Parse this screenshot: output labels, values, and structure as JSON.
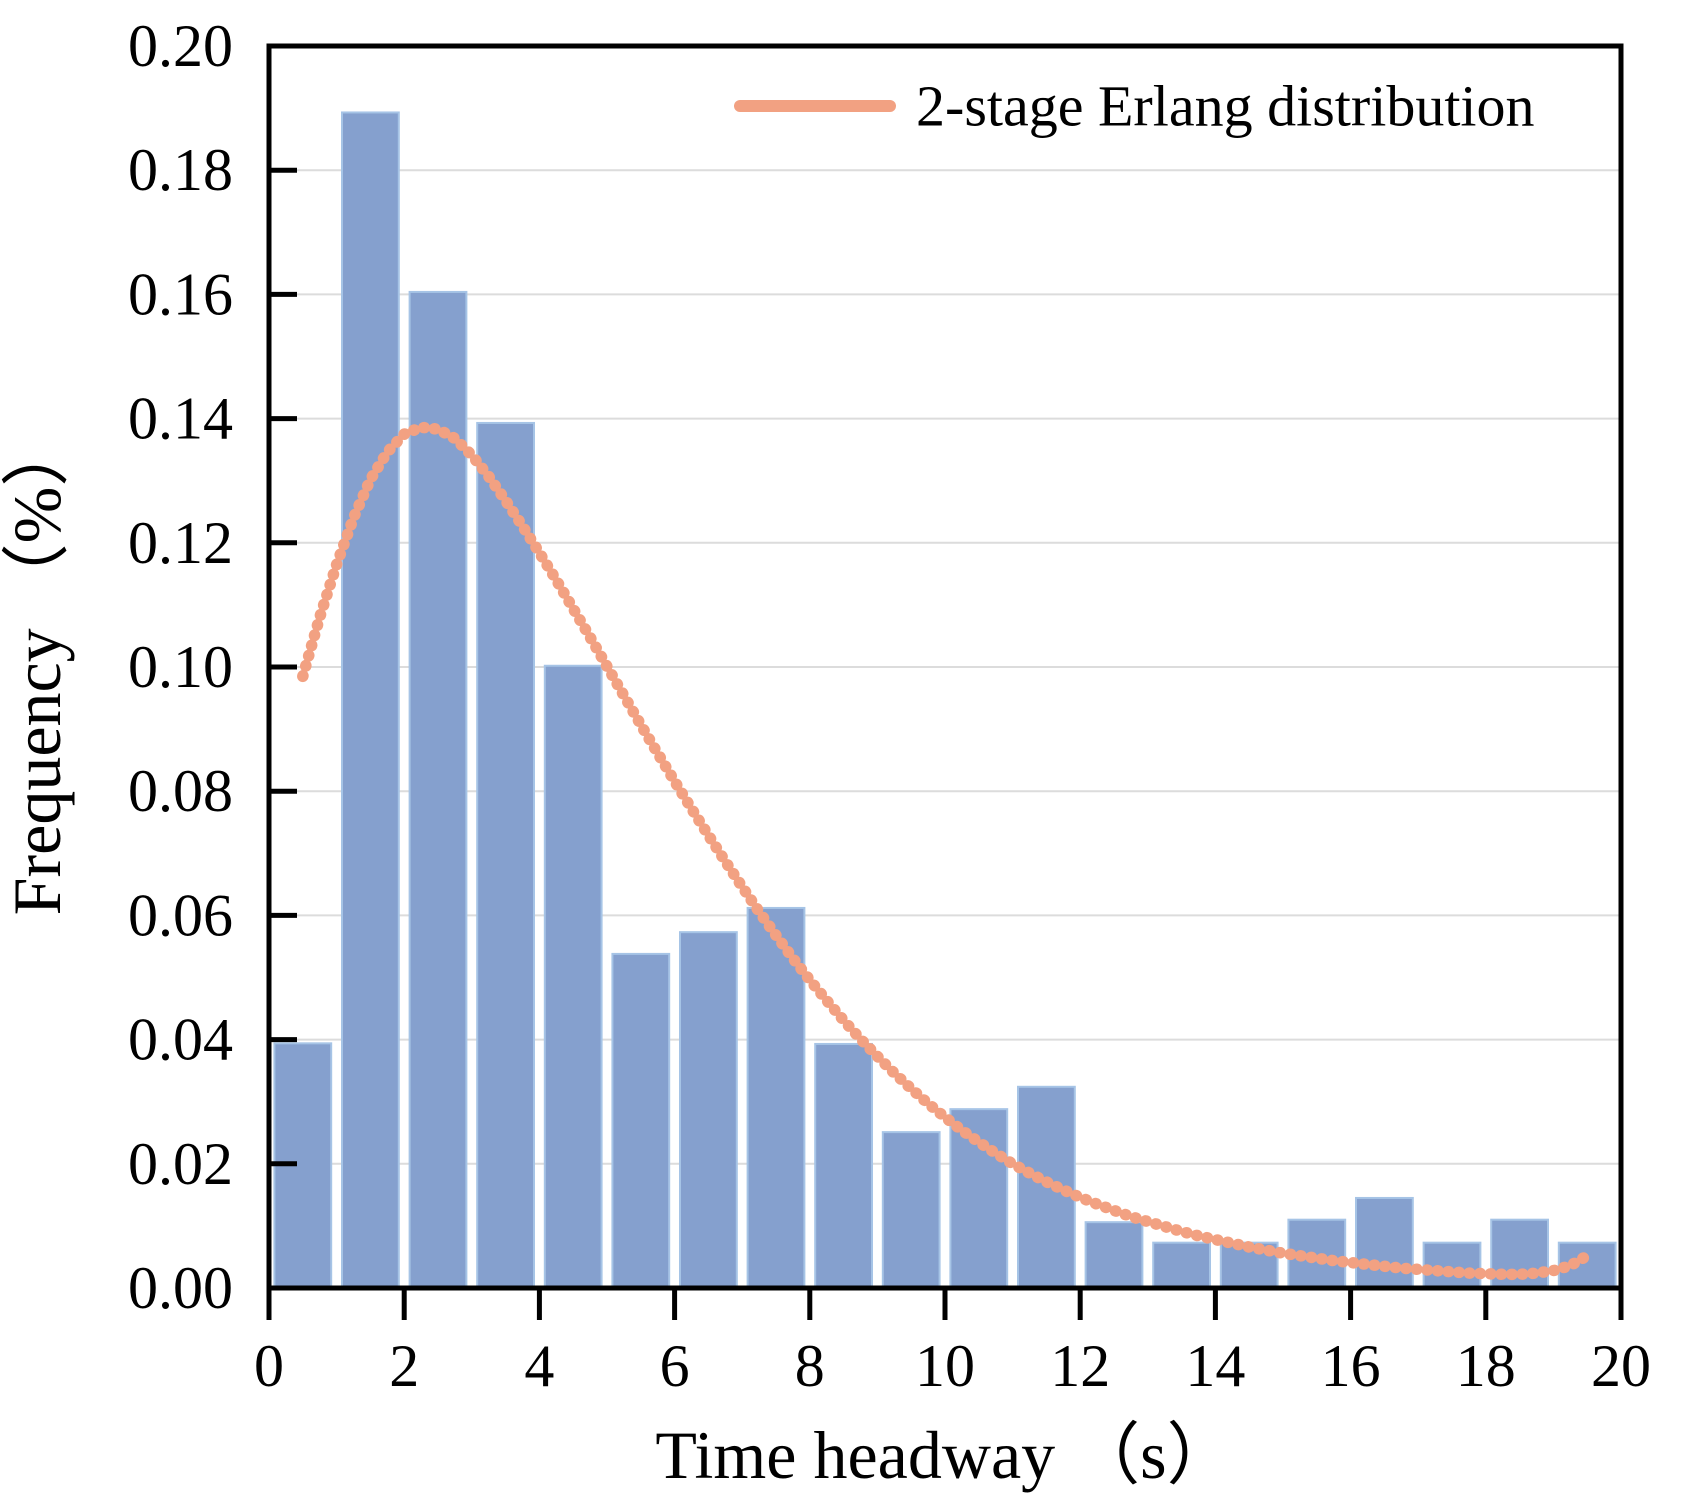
{
  "chart_data": {
    "type": "bar",
    "subtype": "histogram-with-fitted-line",
    "title": "",
    "xlabel": "Time headway （s）",
    "ylabel": "Frequency （%）",
    "xlim": [
      0,
      20
    ],
    "ylim": [
      0.0,
      0.2
    ],
    "x_ticks": [
      0,
      2,
      4,
      6,
      8,
      10,
      12,
      14,
      16,
      18,
      20
    ],
    "y_ticks": [
      0.0,
      0.02,
      0.04,
      0.06,
      0.08,
      0.1,
      0.12,
      0.14,
      0.16,
      0.18,
      0.2
    ],
    "grid": true,
    "legend": {
      "label": "2-stage Erlang distribution",
      "position": "top-right"
    },
    "bars": {
      "name": "time-headway-frequency-histogram",
      "bin_start": 0,
      "bin_width": 1,
      "categories": [
        "0-1",
        "1-2",
        "2-3",
        "3-4",
        "4-5",
        "5-6",
        "6-7",
        "7-8",
        "8-9",
        "9-10",
        "10-11",
        "11-12",
        "12-13",
        "13-14",
        "14-15",
        "15-16",
        "16-17",
        "17-18",
        "18-19",
        "19-20"
      ],
      "values": [
        0.0394,
        0.1893,
        0.1604,
        0.1393,
        0.1002,
        0.0538,
        0.0573,
        0.0612,
        0.0393,
        0.0251,
        0.0288,
        0.0324,
        0.0106,
        0.0073,
        0.0073,
        0.011,
        0.0145,
        0.0073,
        0.011,
        0.0073
      ]
    },
    "line": {
      "name": "2-stage Erlang distribution",
      "points": [
        [
          0.5,
          0.0985
        ],
        [
          0.75,
          0.108
        ],
        [
          1.0,
          0.1165
        ],
        [
          1.25,
          0.124
        ],
        [
          1.5,
          0.1302
        ],
        [
          1.75,
          0.1346
        ],
        [
          2.0,
          0.1375
        ],
        [
          2.25,
          0.1386
        ],
        [
          2.5,
          0.1383
        ],
        [
          2.75,
          0.1368
        ],
        [
          3.0,
          0.1341
        ],
        [
          3.25,
          0.1307
        ],
        [
          3.5,
          0.1268
        ],
        [
          3.75,
          0.1227
        ],
        [
          4.0,
          0.1184
        ],
        [
          4.25,
          0.114
        ],
        [
          4.5,
          0.1094
        ],
        [
          4.75,
          0.1048
        ],
        [
          5.0,
          0.1001
        ],
        [
          5.25,
          0.0954
        ],
        [
          5.5,
          0.0907
        ],
        [
          5.75,
          0.0861
        ],
        [
          6.0,
          0.0816
        ],
        [
          6.25,
          0.0772
        ],
        [
          6.5,
          0.0729
        ],
        [
          6.75,
          0.0687
        ],
        [
          7.0,
          0.0646
        ],
        [
          7.25,
          0.0606
        ],
        [
          7.5,
          0.0568
        ],
        [
          7.75,
          0.0531
        ],
        [
          8.0,
          0.0496
        ],
        [
          8.25,
          0.0463
        ],
        [
          8.5,
          0.0431
        ],
        [
          8.75,
          0.0401
        ],
        [
          9.0,
          0.0373
        ],
        [
          9.25,
          0.0346
        ],
        [
          9.5,
          0.0321
        ],
        [
          9.75,
          0.0297
        ],
        [
          10.0,
          0.0275
        ],
        [
          10.25,
          0.0254
        ],
        [
          10.5,
          0.0235
        ],
        [
          10.75,
          0.0217
        ],
        [
          11.0,
          0.02
        ],
        [
          11.25,
          0.0185
        ],
        [
          11.5,
          0.0171
        ],
        [
          11.75,
          0.0158
        ],
        [
          12.0,
          0.0146
        ],
        [
          12.25,
          0.0135
        ],
        [
          12.5,
          0.0125
        ],
        [
          12.75,
          0.0115
        ],
        [
          13.0,
          0.0107
        ],
        [
          13.25,
          0.0099
        ],
        [
          13.5,
          0.0091
        ],
        [
          13.75,
          0.0084
        ],
        [
          14.0,
          0.0078
        ],
        [
          14.25,
          0.0072
        ],
        [
          14.5,
          0.0066
        ],
        [
          14.75,
          0.0061
        ],
        [
          15.0,
          0.0056
        ],
        [
          15.25,
          0.0052
        ],
        [
          15.5,
          0.0048
        ],
        [
          15.75,
          0.0044
        ],
        [
          16.0,
          0.0041
        ],
        [
          16.25,
          0.0038
        ],
        [
          16.5,
          0.0035
        ],
        [
          16.75,
          0.0032
        ],
        [
          17.0,
          0.003
        ],
        [
          17.25,
          0.0028
        ],
        [
          17.5,
          0.0026
        ],
        [
          17.75,
          0.0024
        ],
        [
          18.0,
          0.0023
        ],
        [
          18.25,
          0.0022
        ],
        [
          18.5,
          0.0022
        ],
        [
          18.75,
          0.0024
        ],
        [
          19.0,
          0.0028
        ],
        [
          19.25,
          0.0036
        ],
        [
          19.5,
          0.0052
        ]
      ]
    },
    "colors": {
      "bar_fill": "#85a0ce",
      "bar_stroke": "#a6c4e6",
      "line": "#f2a182",
      "grid": "#dcdcdc",
      "axis": "#000000"
    },
    "y_tick_decimals": 2
  }
}
